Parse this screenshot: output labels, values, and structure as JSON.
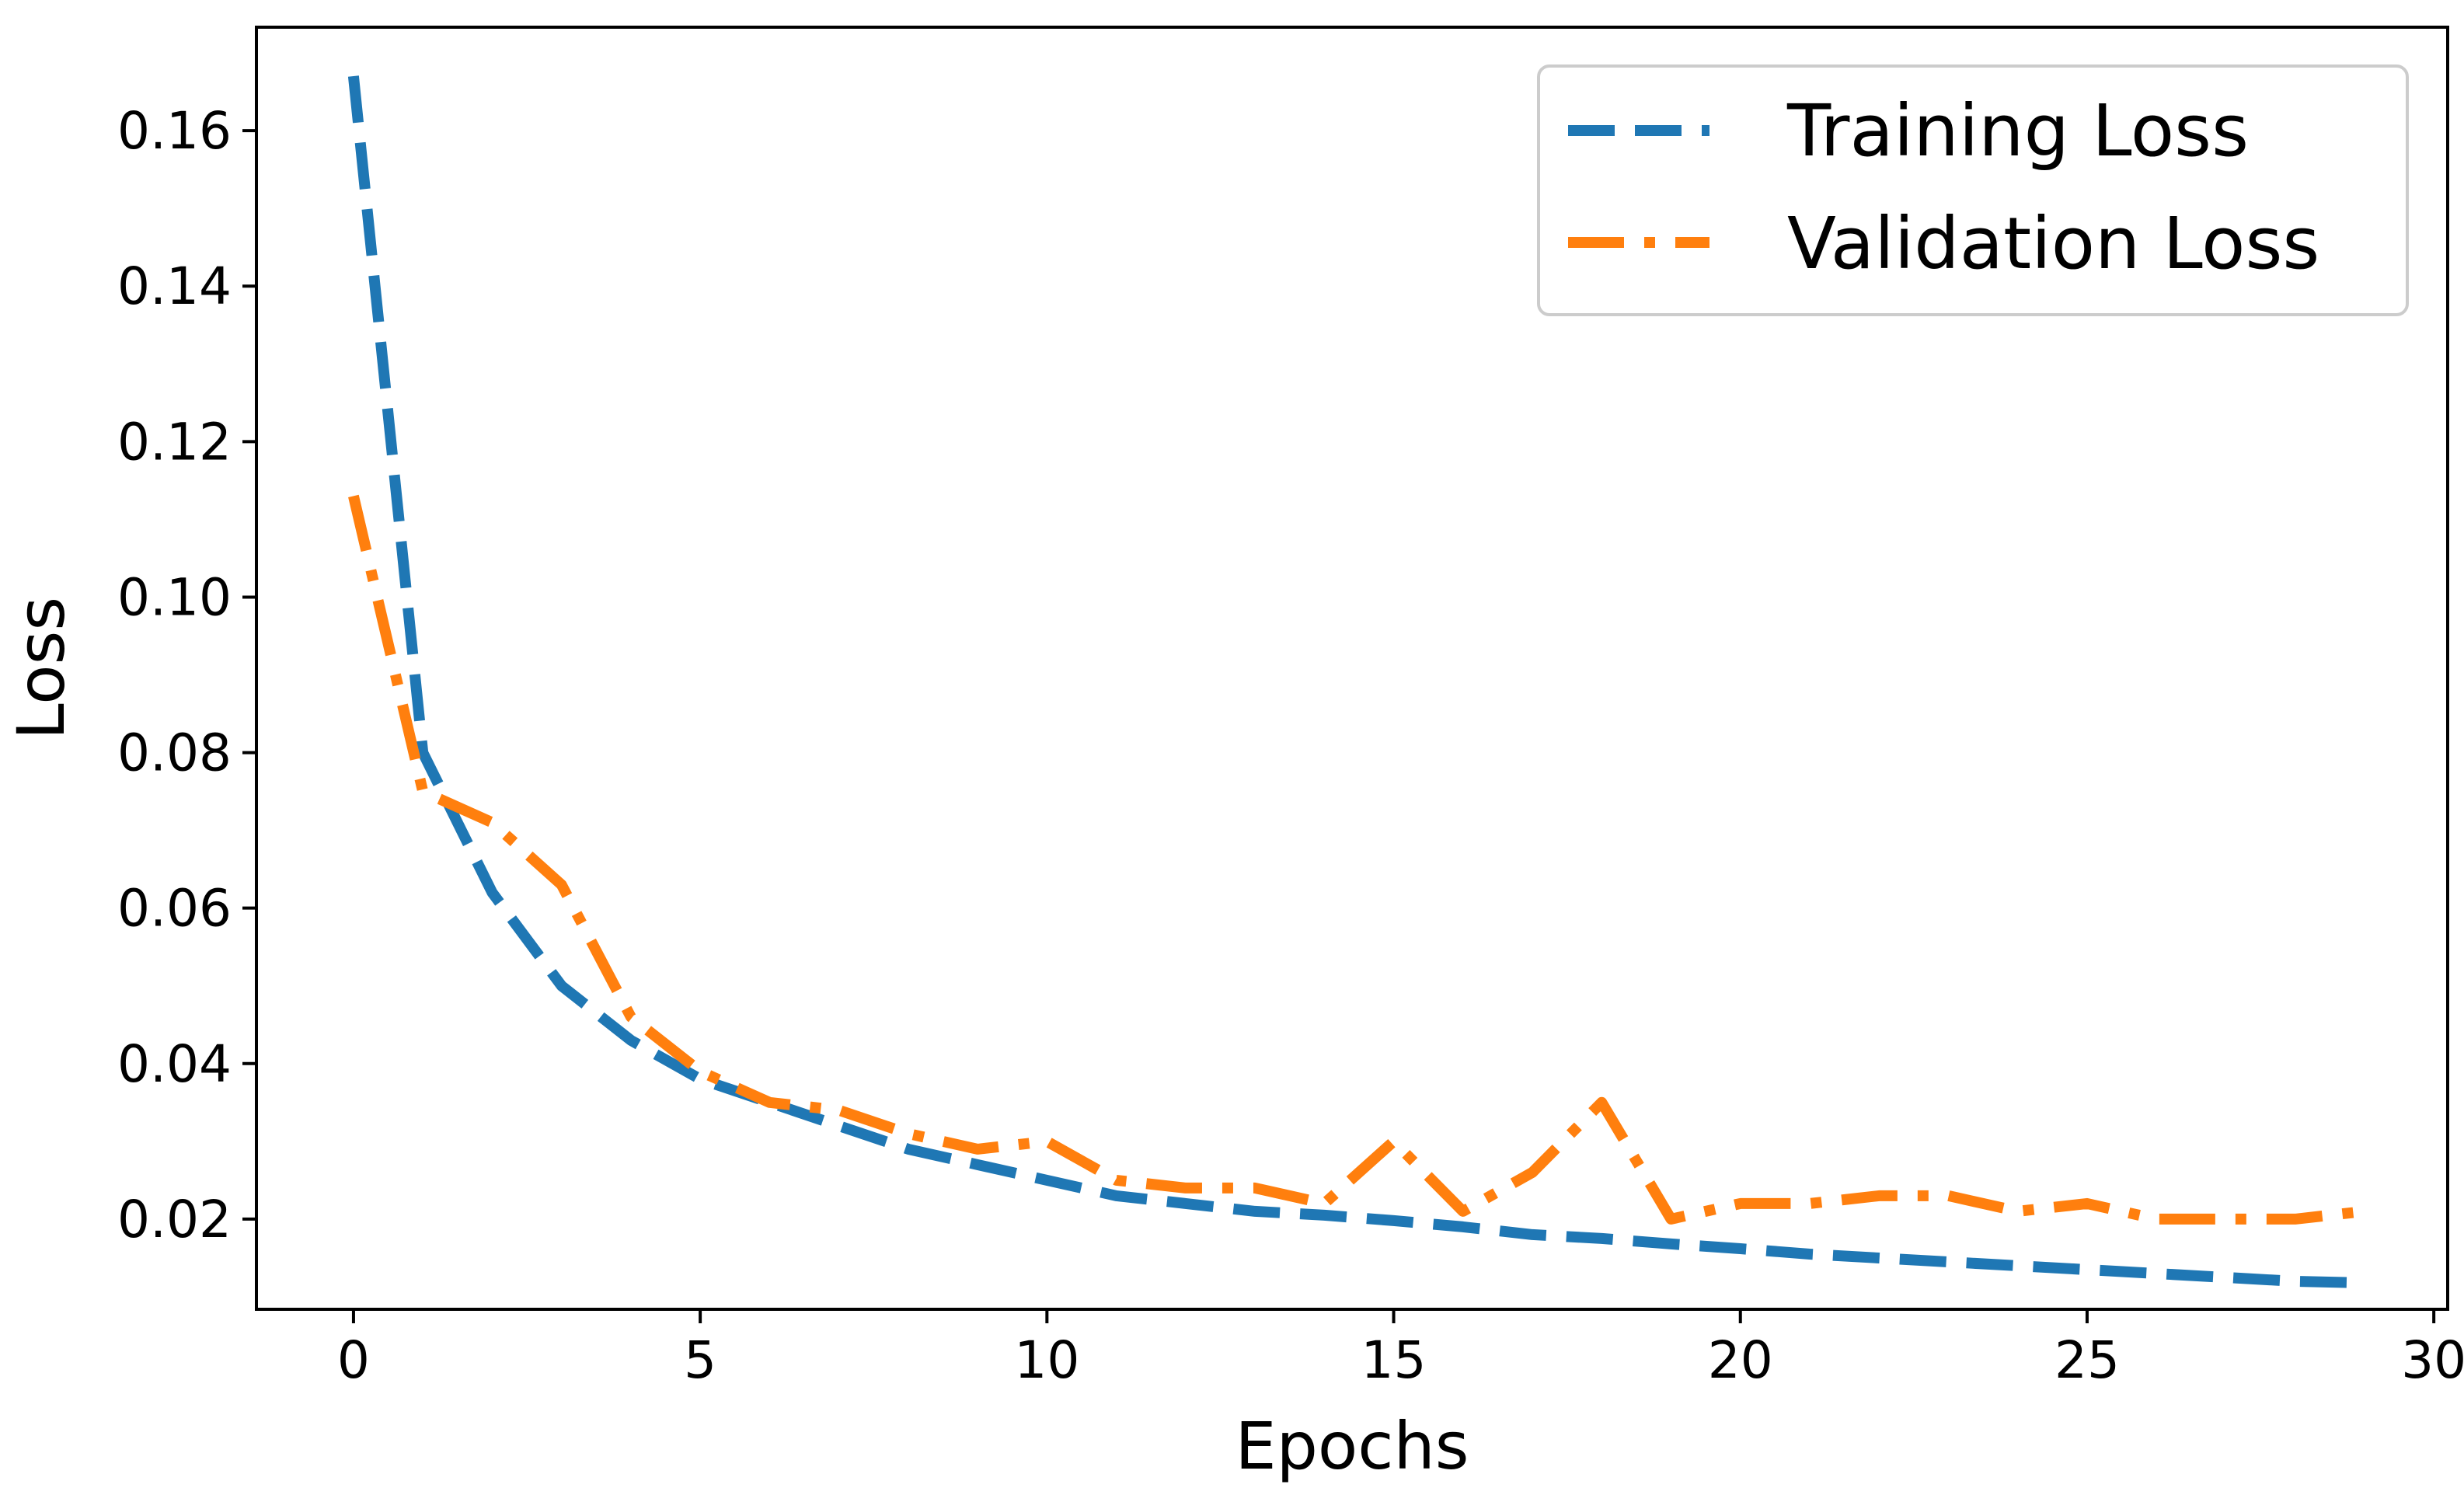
{
  "chart_data": {
    "type": "line",
    "title": "",
    "xlabel": "Epochs",
    "ylabel": "Loss",
    "xlim": [
      -1.4,
      30.2
    ],
    "ylim": [
      0.0084,
      0.1733
    ],
    "xticks": [
      0,
      5,
      10,
      15,
      20,
      25,
      30
    ],
    "xtick_labels": [
      "0",
      "5",
      "10",
      "15",
      "20",
      "25",
      "30"
    ],
    "yticks": [
      0.02,
      0.04,
      0.06,
      0.08,
      0.1,
      0.12,
      0.14,
      0.16
    ],
    "ytick_labels": [
      "0.02",
      "0.04",
      "0.06",
      "0.08",
      "0.10",
      "0.12",
      "0.14",
      "0.16"
    ],
    "grid": false,
    "legend_position": "top-right",
    "x": [
      0,
      1,
      2,
      3,
      4,
      5,
      6,
      7,
      8,
      9,
      10,
      11,
      12,
      13,
      14,
      15,
      16,
      17,
      18,
      19,
      20,
      21,
      22,
      23,
      24,
      25,
      26,
      27,
      28,
      29
    ],
    "series": [
      {
        "name": "Training Loss",
        "color": "#1f77b4",
        "style": "dashed",
        "values": [
          0.167,
          0.08,
          0.062,
          0.05,
          0.043,
          0.038,
          0.035,
          0.032,
          0.029,
          0.027,
          0.025,
          0.023,
          0.022,
          0.021,
          0.0205,
          0.0198,
          0.019,
          0.018,
          0.0175,
          0.0168,
          0.0162,
          0.0155,
          0.015,
          0.0145,
          0.014,
          0.0135,
          0.013,
          0.0125,
          0.012,
          0.0118
        ]
      },
      {
        "name": "Validation Loss",
        "color": "#ff7f0e",
        "style": "dashdot",
        "values": [
          0.113,
          0.075,
          0.071,
          0.063,
          0.046,
          0.039,
          0.035,
          0.034,
          0.031,
          0.029,
          0.03,
          0.025,
          0.024,
          0.024,
          0.022,
          0.03,
          0.021,
          0.026,
          0.035,
          0.02,
          0.022,
          0.022,
          0.023,
          0.023,
          0.021,
          0.022,
          0.02,
          0.02,
          0.02,
          0.021
        ]
      }
    ]
  }
}
